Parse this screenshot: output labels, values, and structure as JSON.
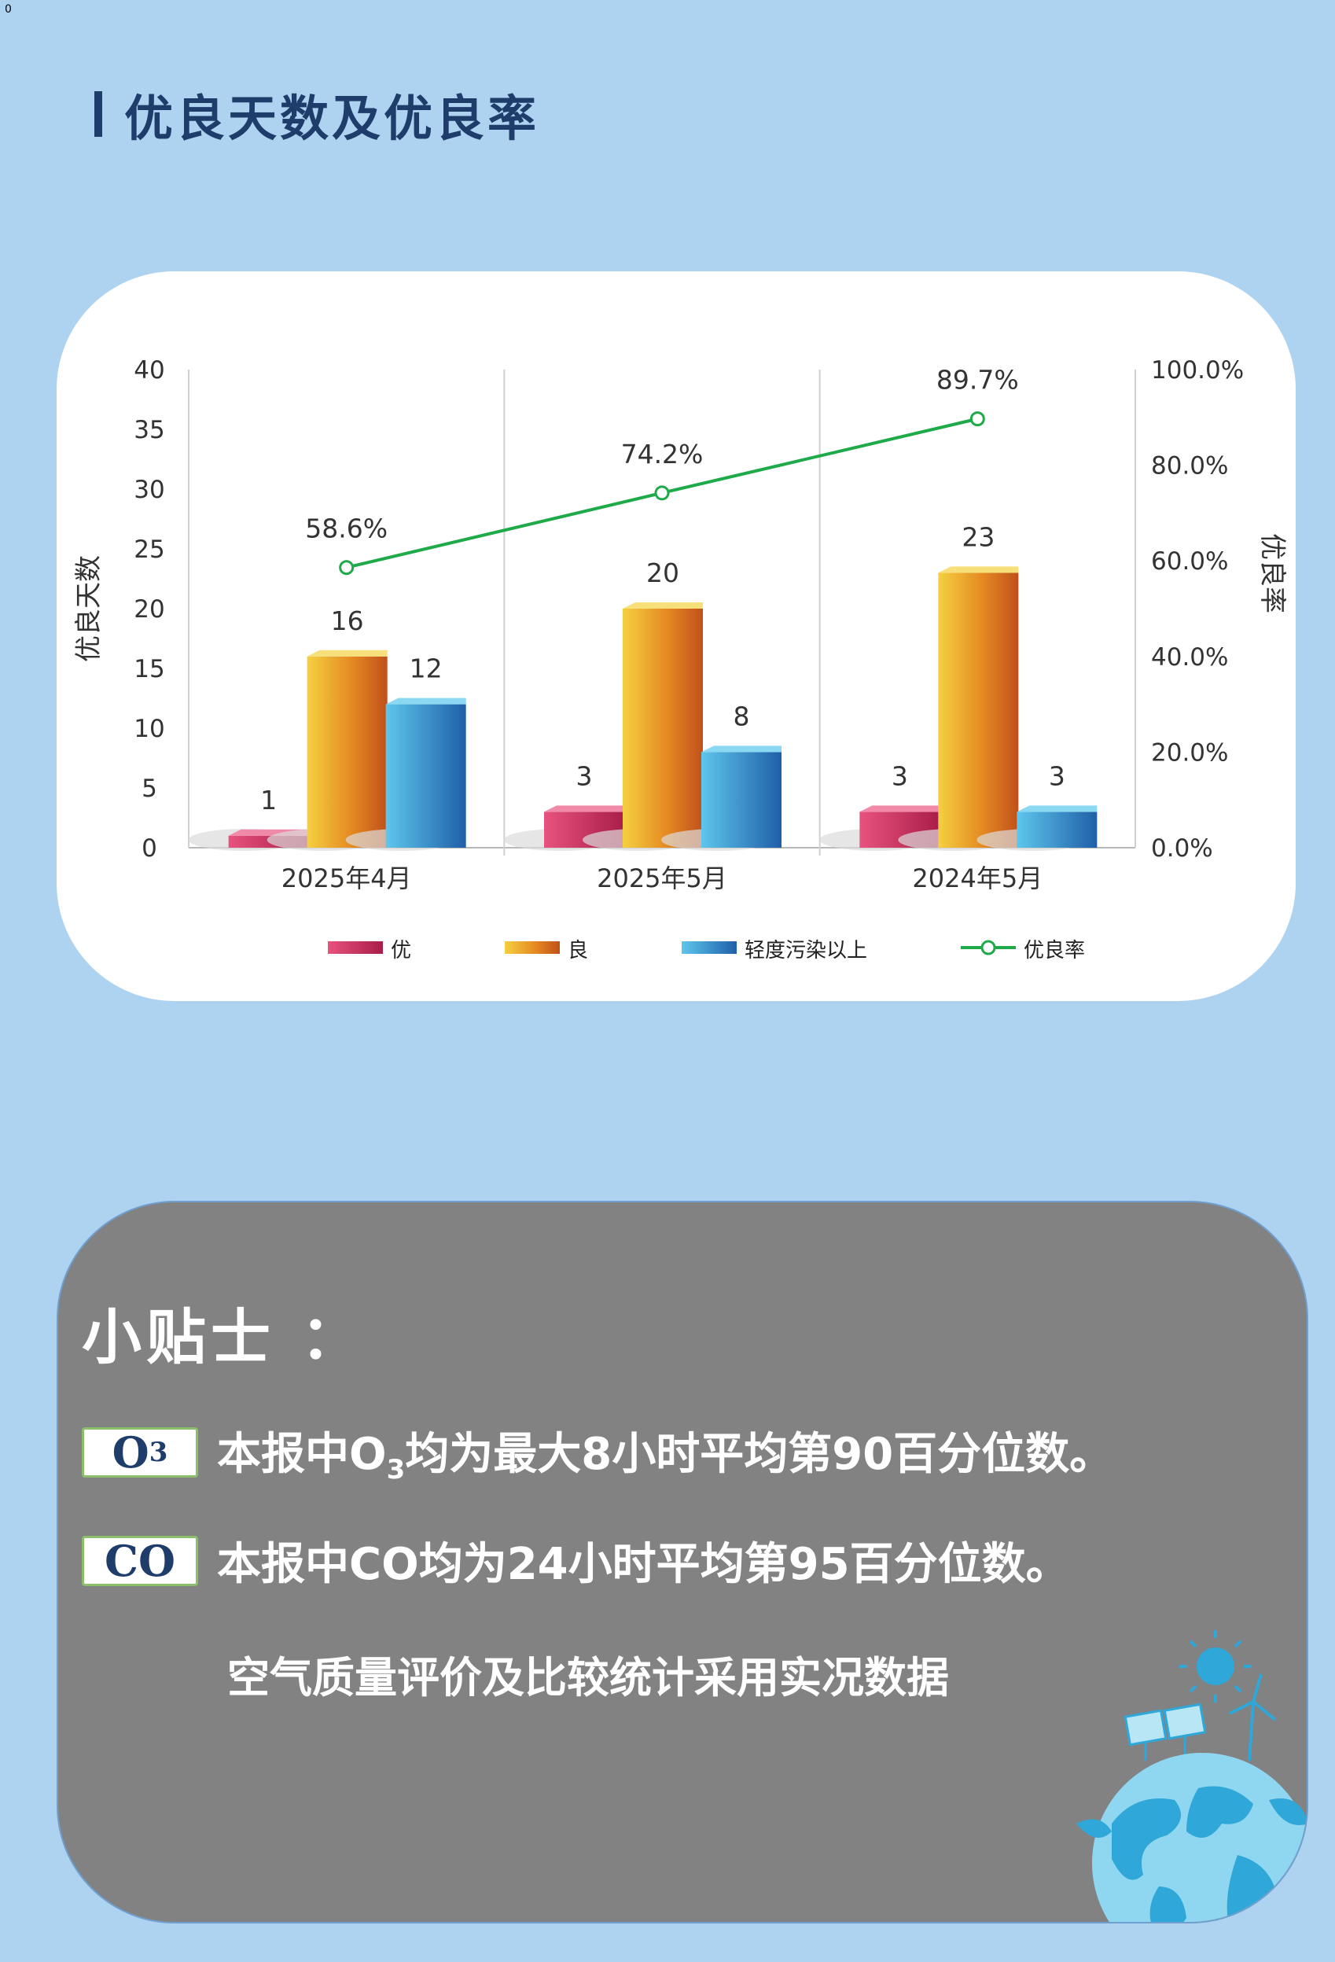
{
  "corner_mark": "0",
  "header": {
    "title": "优良天数及优良率"
  },
  "chart_data": {
    "type": "bar",
    "categories": [
      "2025年4月",
      "2025年5月",
      "2024年5月"
    ],
    "series": [
      {
        "name": "优",
        "values": [
          1,
          3,
          3
        ],
        "color": "#c8325c"
      },
      {
        "name": "良",
        "values": [
          16,
          20,
          23
        ],
        "color": "#e07a1a"
      },
      {
        "name": "轻度污染以上",
        "values": [
          12,
          8,
          3
        ],
        "color": "#2f86c4"
      }
    ],
    "line_series": {
      "name": "优良率",
      "values": [
        58.6,
        74.2,
        89.7
      ],
      "labels": [
        "58.6%",
        "74.2%",
        "89.7%"
      ],
      "color": "#1faa4a",
      "axis": "right"
    },
    "ylabel": "优良天数",
    "y2label": "优良率",
    "ylim": [
      0,
      40
    ],
    "y_ticks": [
      "0",
      "5",
      "10",
      "15",
      "20",
      "25",
      "30",
      "35",
      "40"
    ],
    "y2lim": [
      0,
      100
    ],
    "y2_ticks": [
      "0.0%",
      "20.0%",
      "40.0%",
      "60.0%",
      "80.0%",
      "100.0%"
    ],
    "legend_position": "bottom"
  },
  "tips": {
    "title": "小贴士 ：",
    "o3_badge": "O",
    "o3_badge_sub": "3",
    "o3_text_a": "本报中O",
    "o3_text_sub": "3",
    "o3_text_b": "均为最大8小时平均第90百分位数。",
    "co_badge": "CO",
    "co_text": "本报中CO均为24小时平均第95百分位数。",
    "note": "空气质量评价及比较统计采用实况数据"
  }
}
